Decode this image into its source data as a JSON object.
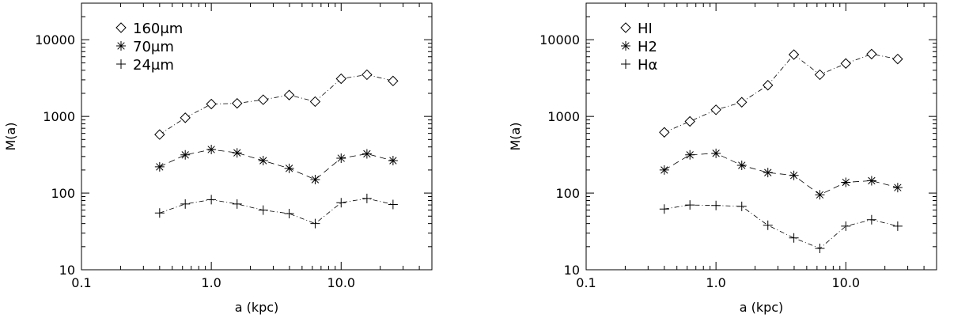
{
  "chart_data": [
    {
      "type": "line",
      "xlabel": "a (kpc)",
      "ylabel": "M(a)",
      "xscale": "log",
      "yscale": "log",
      "xlim": [
        0.1,
        50
      ],
      "ylim": [
        10,
        30000
      ],
      "xticks": [
        "0.1",
        "1.0",
        "10.0"
      ],
      "yticks": [
        "10",
        "100",
        "1000",
        "10000"
      ],
      "legend_position": "top-left",
      "x": [
        0.4,
        0.63,
        1.0,
        1.58,
        2.51,
        3.98,
        6.31,
        10.0,
        15.8,
        25.1
      ],
      "series": [
        {
          "name": "160μm",
          "marker": "diamond",
          "dash": "dash-dot",
          "values": [
            580,
            960,
            1450,
            1480,
            1650,
            1900,
            1560,
            3100,
            3500,
            2900
          ]
        },
        {
          "name": "70μm",
          "marker": "asterisk",
          "dash": "dashed",
          "values": [
            220,
            315,
            370,
            335,
            265,
            210,
            150,
            285,
            325,
            265
          ]
        },
        {
          "name": "24μm",
          "marker": "plus",
          "dash": "dash-dot",
          "values": [
            55,
            72,
            82,
            72,
            60,
            54,
            40,
            75,
            85,
            71
          ]
        }
      ]
    },
    {
      "type": "line",
      "xlabel": "a (kpc)",
      "ylabel": "M(a)",
      "xscale": "log",
      "yscale": "log",
      "xlim": [
        0.1,
        50
      ],
      "ylim": [
        10,
        30000
      ],
      "xticks": [
        "0.1",
        "1.0",
        "10.0"
      ],
      "yticks": [
        "10",
        "100",
        "1000",
        "10000"
      ],
      "legend_position": "top-left",
      "x": [
        0.4,
        0.63,
        1.0,
        1.58,
        2.51,
        3.98,
        6.31,
        10.0,
        15.8,
        25.1
      ],
      "series": [
        {
          "name": "HI",
          "marker": "diamond",
          "dash": "dash-dot",
          "values": [
            620,
            860,
            1220,
            1530,
            2550,
            6400,
            3500,
            4900,
            6500,
            5600
          ]
        },
        {
          "name": "H2",
          "marker": "asterisk",
          "dash": "dashed",
          "values": [
            200,
            315,
            330,
            230,
            185,
            170,
            95,
            138,
            145,
            118
          ]
        },
        {
          "name": "Hα",
          "marker": "plus",
          "dash": "dash-dot",
          "values": [
            62,
            70,
            69,
            67,
            38,
            26,
            19,
            37,
            45,
            37
          ]
        }
      ]
    }
  ]
}
